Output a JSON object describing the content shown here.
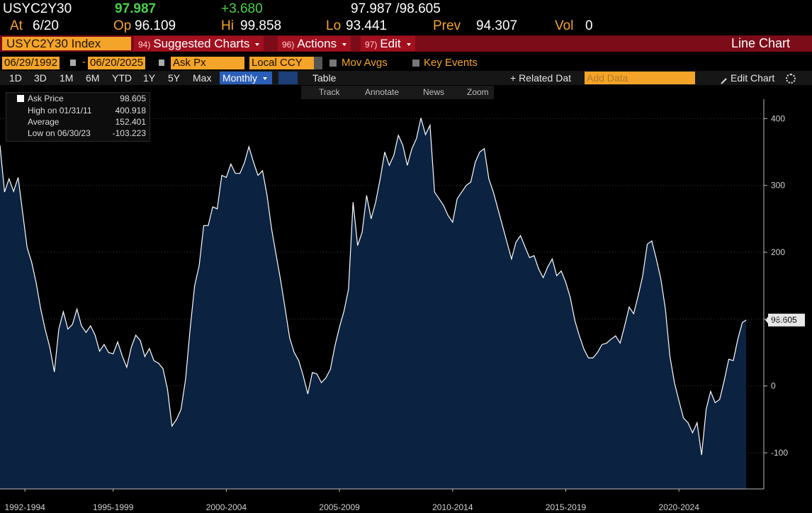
{
  "header": {
    "ticker": "USYC2Y30",
    "last": "97.987",
    "change": "+3.680",
    "bid_ask": "97.987 /98.605",
    "stats": [
      {
        "label": "At",
        "value": "6/20"
      },
      {
        "label": "Op",
        "value": "96.109"
      },
      {
        "label": "Hi",
        "value": "99.858"
      },
      {
        "label": "Lo",
        "value": "93.441"
      },
      {
        "label": "Prev",
        "value": "94.307"
      },
      {
        "label": "Vol",
        "value": "0"
      }
    ]
  },
  "toolbar": {
    "security": "USYC2Y30 Index",
    "menus": [
      {
        "num": "94)",
        "label": "Suggested Charts"
      },
      {
        "num": "96)",
        "label": "Actions"
      },
      {
        "num": "97)",
        "label": "Edit"
      }
    ],
    "chart_type": "Line Chart"
  },
  "controls": {
    "start_date": "06/29/1992",
    "separator": "-",
    "end_date": "06/20/2025",
    "field": "Ask Px",
    "currency": "Local CCY",
    "checkboxes": [
      "Mov Avgs",
      "Key Events"
    ],
    "periods": [
      "1D",
      "3D",
      "1M",
      "6M",
      "YTD",
      "1Y",
      "5Y",
      "Max"
    ],
    "frequency": "Monthly",
    "table": "Table",
    "related": "+ Related Dat",
    "add_data": "Add Data",
    "edit_chart": "Edit Chart"
  },
  "tools": [
    "Track",
    "Annotate",
    "News",
    "Zoom"
  ],
  "chart_data": {
    "type": "area",
    "x": [
      1992.5,
      1992.7,
      1992.9,
      1993.1,
      1993.3,
      1993.5,
      1993.7,
      1993.9,
      1994.1,
      1994.3,
      1994.5,
      1994.7,
      1994.9,
      1995.1,
      1995.3,
      1995.5,
      1995.7,
      1995.9,
      1996.1,
      1996.3,
      1996.5,
      1996.7,
      1996.9,
      1997.1,
      1997.3,
      1997.5,
      1997.7,
      1997.9,
      1998.1,
      1998.3,
      1998.5,
      1998.7,
      1998.9,
      1999.1,
      1999.3,
      1999.5,
      1999.7,
      1999.9,
      2000.1,
      2000.3,
      2000.5,
      2000.7,
      2000.9,
      2001.1,
      2001.3,
      2001.5,
      2001.7,
      2001.9,
      2002.1,
      2002.3,
      2002.5,
      2002.7,
      2002.9,
      2003.1,
      2003.3,
      2003.5,
      2003.7,
      2003.9,
      2004.1,
      2004.3,
      2004.5,
      2004.7,
      2004.9,
      2005.1,
      2005.3,
      2005.5,
      2005.7,
      2005.9,
      2006.1,
      2006.3,
      2006.5,
      2006.7,
      2006.9,
      2007.1,
      2007.3,
      2007.5,
      2007.7,
      2007.9,
      2008.1,
      2008.3,
      2008.5,
      2008.7,
      2008.9,
      2009.1,
      2009.3,
      2009.5,
      2009.7,
      2009.9,
      2010.1,
      2010.3,
      2010.5,
      2010.7,
      2010.9,
      2011.1,
      2011.3,
      2011.5,
      2011.7,
      2011.9,
      2012.1,
      2012.3,
      2012.5,
      2012.7,
      2012.9,
      2013.1,
      2013.3,
      2013.5,
      2013.7,
      2013.9,
      2014.1,
      2014.3,
      2014.5,
      2014.7,
      2014.9,
      2015.1,
      2015.3,
      2015.5,
      2015.7,
      2015.9,
      2016.1,
      2016.3,
      2016.5,
      2016.7,
      2016.9,
      2017.1,
      2017.3,
      2017.5,
      2017.7,
      2017.9,
      2018.1,
      2018.3,
      2018.5,
      2018.7,
      2018.9,
      2019.1,
      2019.3,
      2019.5,
      2019.7,
      2019.9,
      2020.1,
      2020.3,
      2020.5,
      2020.7,
      2020.9,
      2021.1,
      2021.3,
      2021.5,
      2021.7,
      2021.9,
      2022.1,
      2022.3,
      2022.5,
      2022.7,
      2022.9,
      2023.1,
      2023.3,
      2023.5,
      2023.7,
      2023.9,
      2024.1,
      2024.3,
      2024.5,
      2024.7,
      2024.9,
      2025.1,
      2025.3,
      2025.47
    ],
    "series": [
      {
        "name": "Ask Price",
        "color": "#ffffff",
        "fill": "#0b2241",
        "values": [
          360,
          290,
          310,
          291,
          312,
          260,
          207,
          185,
          154,
          115,
          84,
          58,
          21,
          85,
          111,
          85,
          92,
          115,
          90,
          80,
          90,
          76,
          52,
          62,
          50,
          48,
          66,
          45,
          28,
          58,
          76,
          68,
          44,
          56,
          38,
          34,
          26,
          -5,
          -60,
          -50,
          -35,
          10,
          85,
          150,
          180,
          240,
          240,
          268,
          265,
          315,
          312,
          332,
          318,
          318,
          334,
          358,
          335,
          315,
          322,
          285,
          235,
          196,
          158,
          115,
          72,
          50,
          38,
          15,
          -12,
          20,
          18,
          5,
          12,
          25,
          60,
          88,
          112,
          145,
          275,
          210,
          230,
          285,
          250,
          275,
          310,
          350,
          330,
          345,
          375,
          360,
          330,
          355,
          370,
          400.918,
          376,
          390,
          290,
          280,
          270,
          255,
          245,
          280,
          290,
          300,
          305,
          335,
          350,
          355,
          310,
          290,
          265,
          240,
          215,
          190,
          215,
          225,
          208,
          192,
          195,
          175,
          162,
          178,
          190,
          165,
          172,
          155,
          132,
          98,
          75,
          55,
          42,
          42,
          50,
          62,
          64,
          70,
          75,
          64,
          90,
          118,
          108,
          135,
          165,
          212,
          217,
          190,
          160,
          115,
          45,
          5,
          -22,
          -48,
          -55,
          -70,
          -55,
          -103.223,
          -35,
          -8,
          -25,
          -20,
          8,
          40,
          38,
          70,
          95,
          98.605
        ]
      }
    ],
    "stats": [
      {
        "label": "High on 01/31/11",
        "value": 400.918
      },
      {
        "label": "Average",
        "value": 152.401
      },
      {
        "label": "Low on 06/30/23",
        "value": -103.223
      }
    ],
    "xlim": [
      1992.5,
      2026.25
    ],
    "xticks": [
      {
        "value": 1993.6,
        "label": "1992-1994"
      },
      {
        "value": 1997.5,
        "label": "1995-1999"
      },
      {
        "value": 2002.5,
        "label": "2000-2004"
      },
      {
        "value": 2007.5,
        "label": "2005-2009"
      },
      {
        "value": 2012.5,
        "label": "2010-2014"
      },
      {
        "value": 2017.5,
        "label": "2015-2019"
      },
      {
        "value": 2022.5,
        "label": "2020-2024"
      }
    ],
    "ylim": [
      -154,
      429
    ],
    "yticks": [
      -100,
      0,
      100,
      200,
      300,
      400
    ],
    "grid": true
  }
}
